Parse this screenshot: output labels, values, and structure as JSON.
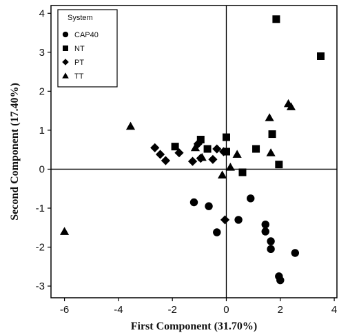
{
  "chart_data": {
    "type": "scatter",
    "xlabel": "First Component (31.70%)",
    "ylabel": "Second Component (17.40%)",
    "xlim": [
      -6.5,
      4.1
    ],
    "ylim": [
      -3.3,
      4.2
    ],
    "xticks": [
      -6,
      -4,
      -2,
      0,
      2,
      4
    ],
    "yticks": [
      -3,
      -2,
      -1,
      0,
      1,
      2,
      3,
      4
    ],
    "reference_lines": {
      "x": 0,
      "y": 0
    },
    "grid": false,
    "legend": {
      "title": "System",
      "placement": "top-left"
    },
    "series": [
      {
        "name": "CAP40",
        "marker": "circle",
        "points": [
          {
            "x": -1.2,
            "y": -0.85
          },
          {
            "x": -0.65,
            "y": -0.95
          },
          {
            "x": -0.35,
            "y": -1.62
          },
          {
            "x": 0.45,
            "y": -1.3
          },
          {
            "x": 0.9,
            "y": -0.75
          },
          {
            "x": 1.45,
            "y": -1.42
          },
          {
            "x": 1.45,
            "y": -1.6
          },
          {
            "x": 1.65,
            "y": -1.85
          },
          {
            "x": 1.65,
            "y": -2.05
          },
          {
            "x": 2.55,
            "y": -2.15
          },
          {
            "x": 1.95,
            "y": -2.75
          },
          {
            "x": 2.0,
            "y": -2.85
          }
        ]
      },
      {
        "name": "NT",
        "marker": "square",
        "points": [
          {
            "x": 1.85,
            "y": 3.85
          },
          {
            "x": 3.5,
            "y": 2.9
          },
          {
            "x": 1.7,
            "y": 0.9
          },
          {
            "x": -1.9,
            "y": 0.58
          },
          {
            "x": -0.95,
            "y": 0.76
          },
          {
            "x": -0.7,
            "y": 0.52
          },
          {
            "x": 0.0,
            "y": 0.82
          },
          {
            "x": 0.0,
            "y": 0.45
          },
          {
            "x": 1.1,
            "y": 0.52
          },
          {
            "x": 1.95,
            "y": 0.12
          },
          {
            "x": 0.6,
            "y": -0.08
          }
        ]
      },
      {
        "name": "PT",
        "marker": "diamond",
        "points": [
          {
            "x": -2.65,
            "y": 0.55
          },
          {
            "x": -2.45,
            "y": 0.38
          },
          {
            "x": -2.25,
            "y": 0.22
          },
          {
            "x": -1.75,
            "y": 0.42
          },
          {
            "x": -1.25,
            "y": 0.2
          },
          {
            "x": -1.05,
            "y": 0.65
          },
          {
            "x": -0.95,
            "y": 0.28
          },
          {
            "x": -0.5,
            "y": 0.25
          },
          {
            "x": -0.35,
            "y": 0.52
          },
          {
            "x": -0.1,
            "y": 0.45
          },
          {
            "x": -0.05,
            "y": -1.3
          }
        ]
      },
      {
        "name": "TT",
        "marker": "triangle",
        "points": [
          {
            "x": -6.0,
            "y": -1.6
          },
          {
            "x": -3.55,
            "y": 1.1
          },
          {
            "x": -1.15,
            "y": 0.55
          },
          {
            "x": -0.9,
            "y": 0.3
          },
          {
            "x": 0.4,
            "y": 0.38
          },
          {
            "x": 0.15,
            "y": 0.05
          },
          {
            "x": -0.15,
            "y": -0.15
          },
          {
            "x": 1.6,
            "y": 1.32
          },
          {
            "x": 1.65,
            "y": 0.42
          },
          {
            "x": 2.3,
            "y": 1.68
          },
          {
            "x": 2.4,
            "y": 1.6
          }
        ]
      }
    ]
  }
}
